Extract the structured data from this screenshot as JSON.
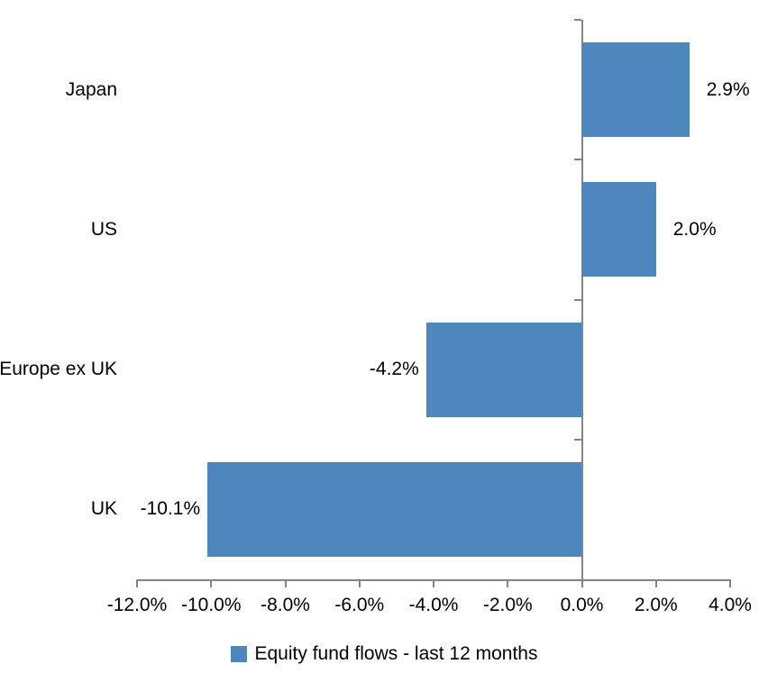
{
  "chart_data": {
    "type": "bar",
    "orientation": "horizontal",
    "title": "",
    "categories": [
      "Japan",
      "US",
      "Europe ex UK",
      "UK"
    ],
    "values": [
      2.9,
      2.0,
      -4.2,
      -10.1
    ],
    "data_labels": [
      "2.9%",
      "2.0%",
      "-4.2%",
      "-10.1%"
    ],
    "xlim": [
      -12,
      4
    ],
    "x_ticks": [
      -12,
      -10,
      -8,
      -6,
      -4,
      -2,
      0,
      2,
      4
    ],
    "x_tick_labels": [
      "-12.0%",
      "-10.0%",
      "-8.0%",
      "-6.0%",
      "-4.0%",
      "-2.0%",
      "0.0%",
      "2.0%",
      "4.0%"
    ],
    "legend": "Equity fund flows - last 12 months",
    "legend_position": "bottom",
    "grid": false,
    "colors": {
      "bar": "#4E87BD",
      "axis": "#848484",
      "text": "#000000",
      "background": "#FFFFFF"
    }
  }
}
